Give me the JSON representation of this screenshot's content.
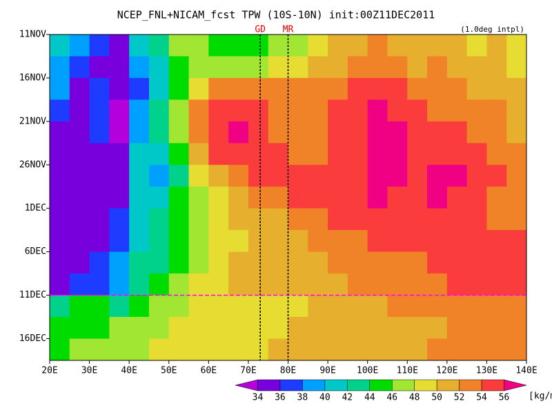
{
  "chart_data": {
    "type": "heatmap",
    "title": "NCEP_FNL+NICAM_fcst TPW (10S-10N) init:00Z11DEC2011",
    "subtitle": "(1.0deg intpl)",
    "colorbar_unit": "[kg/m²]",
    "x_bins": [
      20,
      25,
      30,
      35,
      40,
      45,
      50,
      55,
      60,
      65,
      70,
      75,
      80,
      85,
      90,
      95,
      100,
      105,
      110,
      115,
      120,
      125,
      130,
      135,
      140
    ],
    "xlim": [
      20,
      140
    ],
    "xticks": [
      {
        "value": 20,
        "label": "20E"
      },
      {
        "value": 30,
        "label": "30E"
      },
      {
        "value": 40,
        "label": "40E"
      },
      {
        "value": 50,
        "label": "50E"
      },
      {
        "value": 60,
        "label": "60E"
      },
      {
        "value": 70,
        "label": "70E"
      },
      {
        "value": 80,
        "label": "80E"
      },
      {
        "value": 90,
        "label": "90E"
      },
      {
        "value": 100,
        "label": "100E"
      },
      {
        "value": 110,
        "label": "110E"
      },
      {
        "value": 120,
        "label": "120E"
      },
      {
        "value": 130,
        "label": "130E"
      },
      {
        "value": 140,
        "label": "140E"
      }
    ],
    "categories": [
      "11NOV",
      null,
      "16NOV",
      null,
      "21NOV",
      null,
      "26NOV",
      null,
      "1DEC",
      null,
      "6DEC",
      null,
      "11DEC",
      null,
      "16DEC"
    ],
    "values": [
      [
        40,
        38,
        36,
        35,
        40,
        42,
        46,
        47,
        45,
        44,
        45,
        47,
        46,
        49,
        50,
        51,
        52,
        51,
        50,
        51,
        50,
        49,
        50,
        49
      ],
      [
        39,
        36,
        35,
        34,
        38,
        41,
        44,
        46,
        46,
        46,
        47,
        48,
        49,
        50,
        51,
        52,
        53,
        52,
        51,
        52,
        51,
        50,
        50,
        49
      ],
      [
        38,
        35,
        36,
        34,
        37,
        40,
        44,
        49,
        52,
        53,
        52,
        52,
        52,
        52,
        53,
        54,
        55,
        54,
        53,
        53,
        52,
        51,
        51,
        50
      ],
      [
        36,
        35,
        37,
        33,
        38,
        42,
        46,
        52,
        54,
        55,
        54,
        53,
        52,
        53,
        54,
        55,
        56,
        55,
        54,
        53,
        53,
        52,
        52,
        50
      ],
      [
        34,
        34,
        36,
        33,
        39,
        42,
        46,
        52,
        55,
        56,
        55,
        53,
        52,
        53,
        54,
        55,
        56,
        56,
        55,
        54,
        54,
        53,
        52,
        51
      ],
      [
        34,
        34,
        35,
        34,
        40,
        40,
        45,
        50,
        54,
        55,
        55,
        54,
        53,
        53,
        54,
        55,
        56,
        56,
        55,
        55,
        55,
        54,
        53,
        52
      ],
      [
        34,
        34,
        34,
        35,
        40,
        39,
        43,
        48,
        51,
        52,
        54,
        54,
        55,
        54,
        54,
        55,
        56,
        56,
        55,
        56,
        56,
        55,
        54,
        52
      ],
      [
        34,
        34,
        34,
        35,
        40,
        41,
        44,
        46,
        49,
        51,
        52,
        53,
        54,
        54,
        55,
        55,
        56,
        55,
        55,
        56,
        55,
        54,
        53,
        52
      ],
      [
        34,
        35,
        35,
        36,
        40,
        42,
        44,
        46,
        48,
        50,
        51,
        51,
        52,
        53,
        54,
        55,
        55,
        55,
        54,
        55,
        55,
        54,
        53,
        53
      ],
      [
        34,
        35,
        35,
        37,
        41,
        43,
        45,
        47,
        48,
        49,
        50,
        51,
        51,
        52,
        52,
        53,
        54,
        54,
        54,
        54,
        55,
        54,
        54,
        54
      ],
      [
        35,
        35,
        36,
        38,
        42,
        43,
        45,
        47,
        49,
        50,
        50,
        51,
        50,
        51,
        52,
        52,
        53,
        53,
        53,
        54,
        54,
        55,
        55,
        55
      ],
      [
        35,
        36,
        37,
        38,
        42,
        44,
        46,
        48,
        49,
        50,
        50,
        50,
        50,
        51,
        51,
        52,
        52,
        53,
        53,
        53,
        54,
        55,
        55,
        55
      ],
      [
        42,
        44,
        44,
        43,
        45,
        46,
        47,
        49,
        48,
        48,
        49,
        49,
        49,
        50,
        50,
        51,
        51,
        52,
        52,
        52,
        53,
        52,
        53,
        53
      ],
      [
        44,
        45,
        45,
        46,
        46,
        47,
        48,
        49,
        49,
        48,
        49,
        49,
        50,
        50,
        50,
        51,
        51,
        51,
        51,
        51,
        52,
        52,
        52,
        53
      ],
      [
        45,
        46,
        46,
        46,
        47,
        48,
        49,
        49,
        49,
        49,
        49,
        50,
        50,
        50,
        51,
        51,
        51,
        51,
        51,
        52,
        52,
        52,
        52,
        52
      ]
    ],
    "levels": [
      34,
      36,
      38,
      40,
      42,
      44,
      46,
      48,
      50,
      52,
      54,
      56
    ],
    "colors": [
      "#b400dc",
      "#7800dc",
      "#1e3cff",
      "#00a0ff",
      "#00c8c8",
      "#00d28c",
      "#00dc00",
      "#a0e632",
      "#e6dc32",
      "#e6af2d",
      "#f08228",
      "#fa3c3c",
      "#f00082"
    ],
    "markers": [
      {
        "label": "GD",
        "lon": 73
      },
      {
        "label": "MR",
        "lon": 80
      }
    ]
  }
}
